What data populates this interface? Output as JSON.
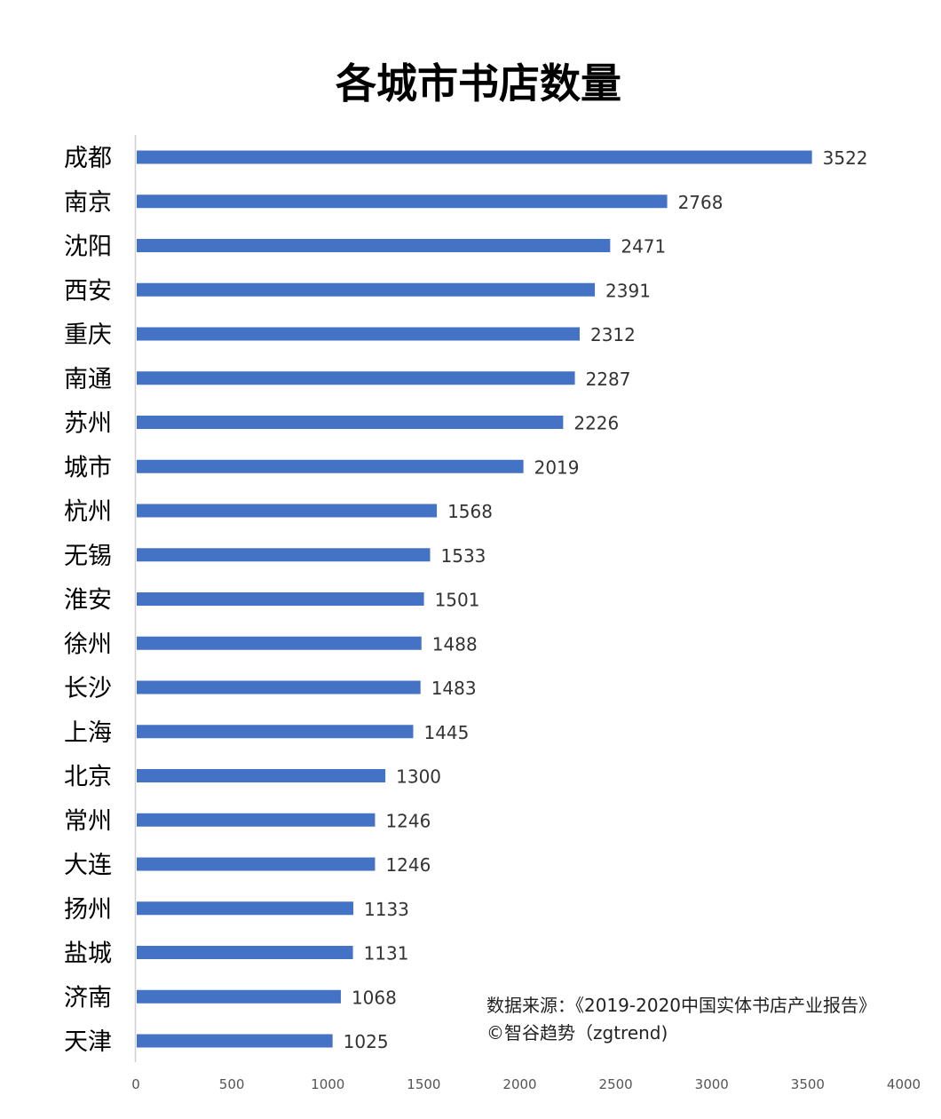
{
  "chart_data": {
    "type": "bar",
    "orientation": "horizontal",
    "title": "各城市书店数量",
    "xlabel": "",
    "ylabel": "",
    "xlim": [
      0,
      4000
    ],
    "xticks": [
      0,
      500,
      1000,
      1500,
      2000,
      2500,
      3000,
      3500,
      4000
    ],
    "grid": false,
    "bar_color": "#4472C4",
    "categories": [
      "成都",
      "南京",
      "沈阳",
      "西安",
      "重庆",
      "南通",
      "苏州",
      "城市",
      "杭州",
      "无锡",
      "淮安",
      "徐州",
      "长沙",
      "上海",
      "北京",
      "常州",
      "大连",
      "扬州",
      "盐城",
      "济南",
      "天津"
    ],
    "values": [
      3522,
      2768,
      2471,
      2391,
      2312,
      2287,
      2226,
      2019,
      1568,
      1533,
      1501,
      1488,
      1483,
      1445,
      1300,
      1246,
      1246,
      1133,
      1131,
      1068,
      1025
    ],
    "annotations": [
      "数据来源：《2019-2020中国实体书店产业报告》",
      "©智谷趋势（zgtrend)"
    ]
  }
}
